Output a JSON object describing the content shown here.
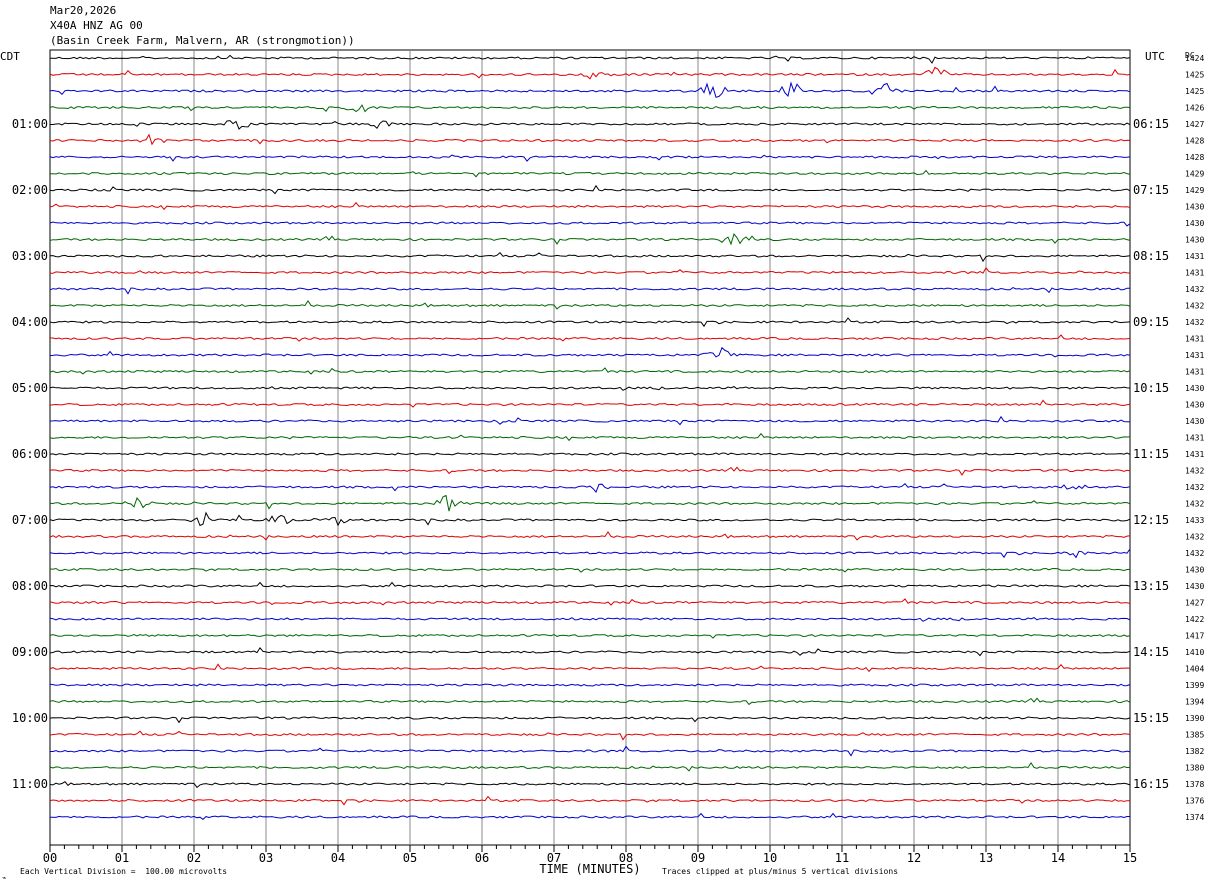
{
  "header": {
    "date": "Mar20,2026",
    "station": "X40A HNZ AG 00",
    "site": "(Basin Creek Farm, Malvern, AR (strongmotion))"
  },
  "chart_data": {
    "type": "line",
    "left_timezone": "CDT",
    "right_timezone": "UTC",
    "dc_label": "DC",
    "xlabel": "TIME (MINUTES)",
    "x_ticks": [
      "00",
      "01",
      "02",
      "03",
      "04",
      "05",
      "06",
      "07",
      "08",
      "09",
      "10",
      "11",
      "12",
      "13",
      "14",
      "15"
    ],
    "xlim": [
      0,
      15
    ],
    "left_hour_labels": [
      "01:00",
      "02:00",
      "03:00",
      "04:00",
      "05:00",
      "06:00",
      "07:00",
      "08:00",
      "09:00",
      "10:00",
      "11:00"
    ],
    "right_hour_labels": [
      "06:15",
      "07:15",
      "08:15",
      "09:15",
      "10:15",
      "11:15",
      "12:15",
      "13:15",
      "14:15",
      "15:15",
      "16:15"
    ],
    "trace_colors": [
      "#000000",
      "#dd0000",
      "#0000cc",
      "#006600"
    ],
    "dc_offsets": [
      1424,
      1425,
      1425,
      1426,
      1427,
      1428,
      1428,
      1429,
      1429,
      1430,
      1430,
      1430,
      1431,
      1431,
      1432,
      1432,
      1432,
      1431,
      1431,
      1431,
      1430,
      1430,
      1430,
      1431,
      1431,
      1432,
      1432,
      1432,
      1433,
      1432,
      1432,
      1430,
      1430,
      1427,
      1422,
      1417,
      1410,
      1404,
      1399,
      1394,
      1390,
      1385,
      1382,
      1380,
      1378,
      1376,
      1374
    ],
    "events": [
      {
        "trace": 1,
        "minute": 7.6,
        "amp": 2.0
      },
      {
        "trace": 1,
        "minute": 12.3,
        "amp": 2.2
      },
      {
        "trace": 2,
        "minute": 9.2,
        "amp": 2.0
      },
      {
        "trace": 2,
        "minute": 10.3,
        "amp": 2.2
      },
      {
        "trace": 2,
        "minute": 11.6,
        "amp": 1.8
      },
      {
        "trace": 3,
        "minute": 4.3,
        "amp": 1.4
      },
      {
        "trace": 4,
        "minute": 2.6,
        "amp": 1.2
      },
      {
        "trace": 4,
        "minute": 4.6,
        "amp": 1.3
      },
      {
        "trace": 5,
        "minute": 1.4,
        "amp": 1.2
      },
      {
        "trace": 11,
        "minute": 9.5,
        "amp": 1.3
      },
      {
        "trace": 18,
        "minute": 9.3,
        "amp": 1.5
      },
      {
        "trace": 26,
        "minute": 7.6,
        "amp": 1.1
      },
      {
        "trace": 26,
        "minute": 14.2,
        "amp": 1.4
      },
      {
        "trace": 27,
        "minute": 1.2,
        "amp": 1.4
      },
      {
        "trace": 27,
        "minute": 5.5,
        "amp": 1.8
      },
      {
        "trace": 28,
        "minute": 2.1,
        "amp": 1.3
      },
      {
        "trace": 28,
        "minute": 3.2,
        "amp": 1.8
      },
      {
        "trace": 28,
        "minute": 4.0,
        "amp": 1.6
      },
      {
        "trace": 30,
        "minute": 14.2,
        "amp": 1.0
      }
    ],
    "footer_left": "Each Vertical Division =  100.00 microvolts",
    "footer_right": "Traces clipped at plus/minus 5 vertical divisions"
  }
}
